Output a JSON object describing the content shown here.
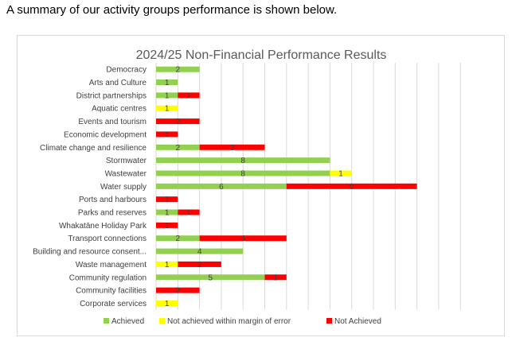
{
  "intro_text": "A summary of our activity groups performance is shown below.",
  "chart_data": {
    "type": "bar",
    "orientation": "horizontal",
    "stacked": true,
    "title": "2024/25 Non-Financial Performance Results",
    "categories": [
      "Democracy",
      "Arts and Culture",
      "District partnerships",
      "Aquatic centres",
      "Events and tourism",
      "Economic development",
      "Climate change and resilience",
      "Stormwater",
      "Wastewater",
      "Water supply",
      "Ports and harbours",
      "Parks and reserves",
      "Whakatāne Holiday Park",
      "Transport connections",
      "Building and resource consent...",
      "Waste management",
      "Community regulation",
      "Community facilities",
      "Corporate services"
    ],
    "series": [
      {
        "name": "Achieved",
        "color": "#92d050",
        "values": [
          2,
          1,
          1,
          0,
          0,
          0,
          2,
          8,
          8,
          6,
          0,
          1,
          0,
          2,
          4,
          0,
          5,
          0,
          0
        ]
      },
      {
        "name": "Not achieved within margin of error",
        "color": "#ffff00",
        "values": [
          0,
          0,
          0,
          1,
          0,
          0,
          0,
          0,
          1,
          0,
          0,
          0,
          0,
          0,
          0,
          1,
          0,
          0,
          1
        ]
      },
      {
        "name": "Not Achieved",
        "color": "#ff0000",
        "values": [
          0,
          0,
          1,
          0,
          2,
          1,
          3,
          0,
          0,
          6,
          1,
          1,
          1,
          4,
          0,
          2,
          1,
          2,
          0
        ]
      }
    ],
    "xlim": [
      0,
      14
    ],
    "grid": true,
    "legend_position": "bottom"
  }
}
